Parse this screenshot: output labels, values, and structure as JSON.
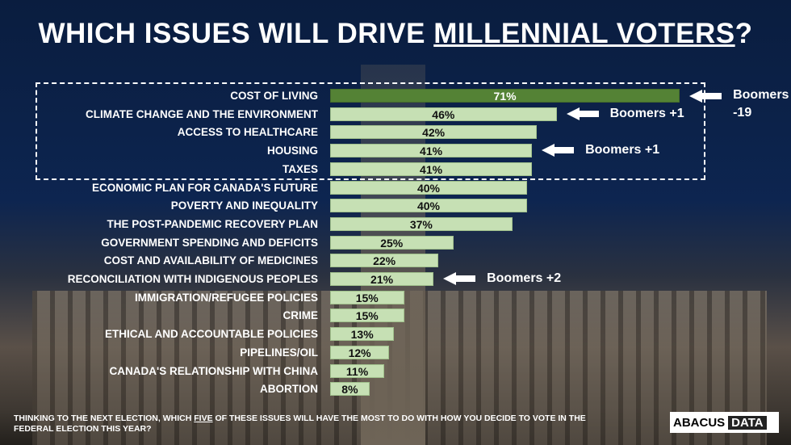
{
  "title_prefix": "WHICH ISSUES WILL DRIVE ",
  "title_underlined": "MILLENNIAL VOTERS",
  "title_suffix": "?",
  "chart_data": {
    "type": "bar",
    "orientation": "horizontal",
    "categories": [
      "COST OF LIVING",
      "CLIMATE CHANGE AND THE ENVIRONMENT",
      "ACCESS TO HEALTHCARE",
      "HOUSING",
      "TAXES",
      "ECONOMIC PLAN FOR CANADA'S FUTURE",
      "POVERTY AND INEQUALITY",
      "THE POST-PANDEMIC RECOVERY PLAN",
      "GOVERNMENT SPENDING AND DEFICITS",
      "COST AND AVAILABILITY OF MEDICINES",
      "RECONCILIATION WITH INDIGENOUS PEOPLES",
      "IMMIGRATION/REFUGEE POLICIES",
      "CRIME",
      "ETHICAL AND ACCOUNTABLE POLICIES",
      "PIPELINES/OIL",
      "CANADA'S RELATIONSHIP WITH CHINA",
      "ABORTION"
    ],
    "values": [
      71,
      46,
      42,
      41,
      41,
      40,
      40,
      37,
      25,
      22,
      21,
      15,
      15,
      13,
      12,
      11,
      8
    ],
    "data_labels": [
      "71%",
      "46%",
      "42%",
      "41%",
      "41%",
      "40%",
      "40%",
      "37%",
      "25%",
      "22%",
      "21%",
      "15%",
      "15%",
      "13%",
      "12%",
      "11%",
      "8%"
    ],
    "highlight_index": 0,
    "colors": {
      "highlight": "#548235",
      "default": "#c6e0b4"
    },
    "annotations": [
      {
        "index": 0,
        "text": "Boomers",
        "text2": "-19"
      },
      {
        "index": 1,
        "text": "Boomers +1"
      },
      {
        "index": 3,
        "text": "Boomers +1"
      },
      {
        "index": 10,
        "text": "Boomers +2"
      }
    ],
    "boxed_top_n": 5
  },
  "footnote_a": "THINKING TO THE NEXT ELECTION, WHICH ",
  "footnote_u": "FIVE",
  "footnote_b": " OF THESE ISSUES WILL HAVE THE MOST TO DO WITH HOW YOU DECIDE TO VOTE IN THE FEDERAL ELECTION THIS YEAR?",
  "logo": {
    "a": "ABACUS",
    "b": "DATA"
  }
}
